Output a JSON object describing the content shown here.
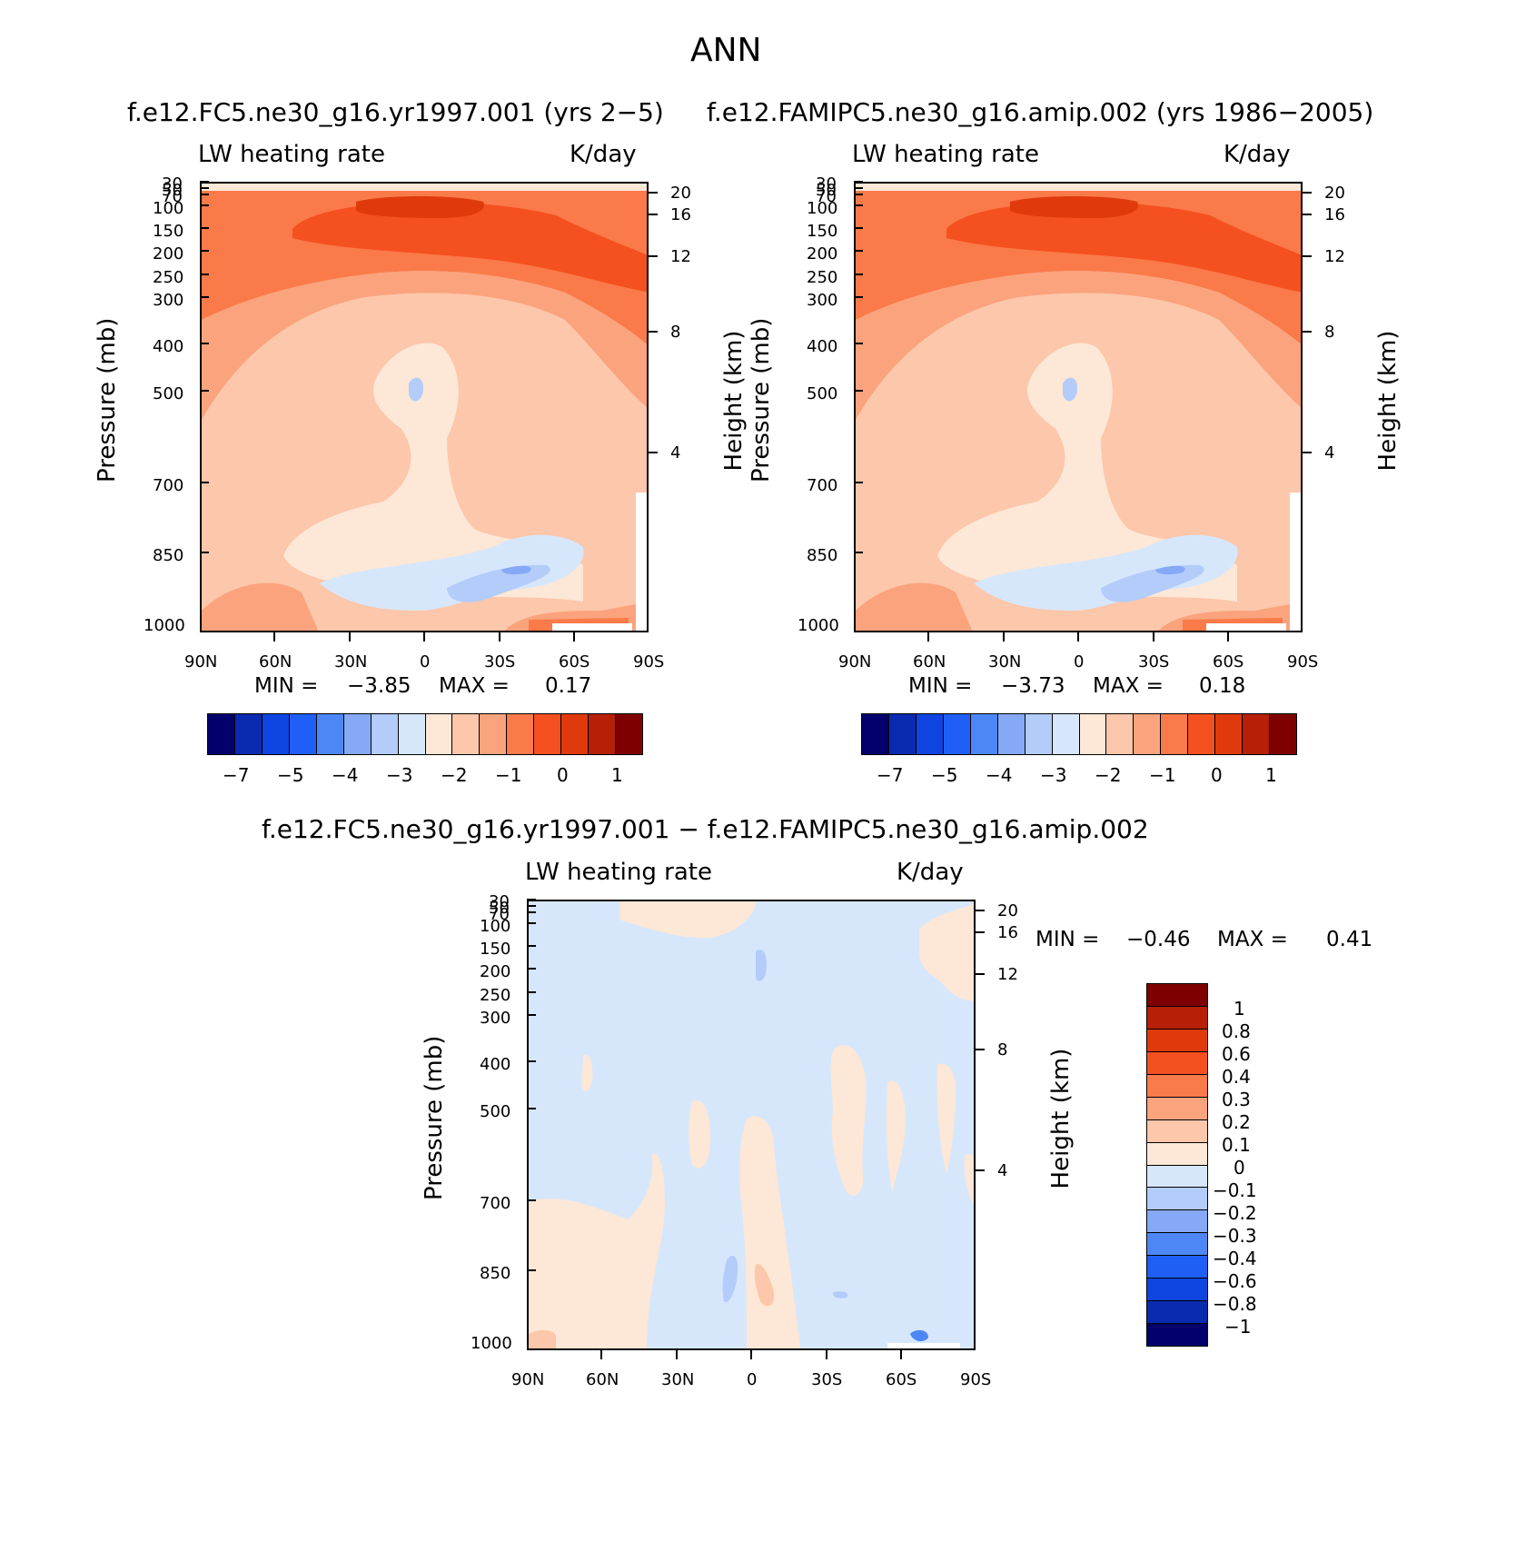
{
  "figure": {
    "title": "ANN"
  },
  "colorbar_colors_abs": [
    "#03006d",
    "#0a2bb0",
    "#0e45e0",
    "#1f5ff5",
    "#4d87f6",
    "#86a9f7",
    "#b3ccfa",
    "#d6e7fc",
    "#fde7d6",
    "#fcc7aa",
    "#fba37d",
    "#fa7a49",
    "#f5501f",
    "#e03a0c",
    "#b71f06",
    "#7f0000"
  ],
  "colorbar_colors_diff": [
    "#7f0000",
    "#b71f06",
    "#e03a0c",
    "#f5501f",
    "#fa7a49",
    "#fba37d",
    "#fcc7aa",
    "#fde7d6",
    "#d6e7fc",
    "#b3ccfa",
    "#86a9f7",
    "#4d87f6",
    "#1f5ff5",
    "#0e45e0",
    "#0a2bb0",
    "#03006d"
  ],
  "panels": {
    "top_left": {
      "case": "f.e12.FC5.ne30_g16.yr1997.001 (yrs 2−5)",
      "variable": "LW heating rate",
      "units": "K/day",
      "min_label": "MIN =",
      "min_value": "−3.85",
      "max_label": "MAX =",
      "max_value": "0.17",
      "colorbar_labels": [
        "−7",
        "−5",
        "−4",
        "−3",
        "−2",
        "−1",
        "0",
        "1"
      ]
    },
    "top_right": {
      "case": "f.e12.FAMIPC5.ne30_g16.amip.002 (yrs 1986−2005)",
      "variable": "LW heating rate",
      "units": "K/day",
      "min_label": "MIN =",
      "min_value": "−3.73",
      "max_label": "MAX =",
      "max_value": "0.18",
      "colorbar_labels": [
        "−7",
        "−5",
        "−4",
        "−3",
        "−2",
        "−1",
        "0",
        "1"
      ]
    },
    "bottom": {
      "case": "f.e12.FC5.ne30_g16.yr1997.001 − f.e12.FAMIPC5.ne30_g16.amip.002",
      "variable": "LW heating rate",
      "units": "K/day",
      "min_label": "MIN =",
      "min_value": "−0.46",
      "max_label": "MAX =",
      "max_value": "0.41",
      "colorbar_labels": [
        "1",
        "0.8",
        "0.6",
        "0.4",
        "0.3",
        "0.2",
        "0.1",
        "0",
        "−0.1",
        "−0.2",
        "−0.3",
        "−0.4",
        "−0.6",
        "−0.8",
        "−1"
      ]
    }
  },
  "axes": {
    "ylabel": "Pressure (mb)",
    "ylabel_right": "Height (km)",
    "pressure_ticks": [
      "30",
      "50",
      "70",
      "100",
      "150",
      "200",
      "250",
      "300",
      "400",
      "500",
      "700",
      "850",
      "1000"
    ],
    "height_ticks": [
      "20",
      "16",
      "12",
      "8",
      "4"
    ],
    "lat_ticks": [
      "90N",
      "60N",
      "30N",
      "0",
      "30S",
      "60S",
      "90S"
    ]
  },
  "chart_data": [
    {
      "type": "heatmap",
      "title": "f.e12.FC5.ne30_g16.yr1997.001 (yrs 2−5)",
      "ylabel": "Pressure (mb)",
      "ylabel_right": "Height (km)",
      "x_ticks": [
        "90N",
        "60N",
        "30N",
        "0",
        "30S",
        "60S",
        "90S"
      ],
      "y_ticks": [
        30,
        50,
        70,
        100,
        150,
        200,
        250,
        300,
        400,
        500,
        700,
        850,
        1000
      ],
      "y_scale": "log-pressure",
      "min": -3.85,
      "max": 0.17,
      "units": "K/day"
    },
    {
      "type": "heatmap",
      "title": "f.e12.FAMIPC5.ne30_g16.amip.002 (yrs 1986−2005)",
      "ylabel": "Pressure (mb)",
      "ylabel_right": "Height (km)",
      "x_ticks": [
        "90N",
        "60N",
        "30N",
        "0",
        "30S",
        "60S",
        "90S"
      ],
      "y_ticks": [
        30,
        50,
        70,
        100,
        150,
        200,
        250,
        300,
        400,
        500,
        700,
        850,
        1000
      ],
      "y_scale": "log-pressure",
      "min": -3.73,
      "max": 0.18,
      "units": "K/day"
    },
    {
      "type": "heatmap",
      "title": "f.e12.FC5.ne30_g16.yr1997.001 − f.e12.FAMIPC5.ne30_g16.amip.002",
      "ylabel": "Pressure (mb)",
      "ylabel_right": "Height (km)",
      "x_ticks": [
        "90N",
        "60N",
        "30N",
        "0",
        "30S",
        "60S",
        "90S"
      ],
      "y_ticks": [
        30,
        50,
        70,
        100,
        150,
        200,
        250,
        300,
        400,
        500,
        700,
        850,
        1000
      ],
      "y_scale": "log-pressure",
      "min": -0.46,
      "max": 0.41,
      "units": "K/day"
    }
  ]
}
